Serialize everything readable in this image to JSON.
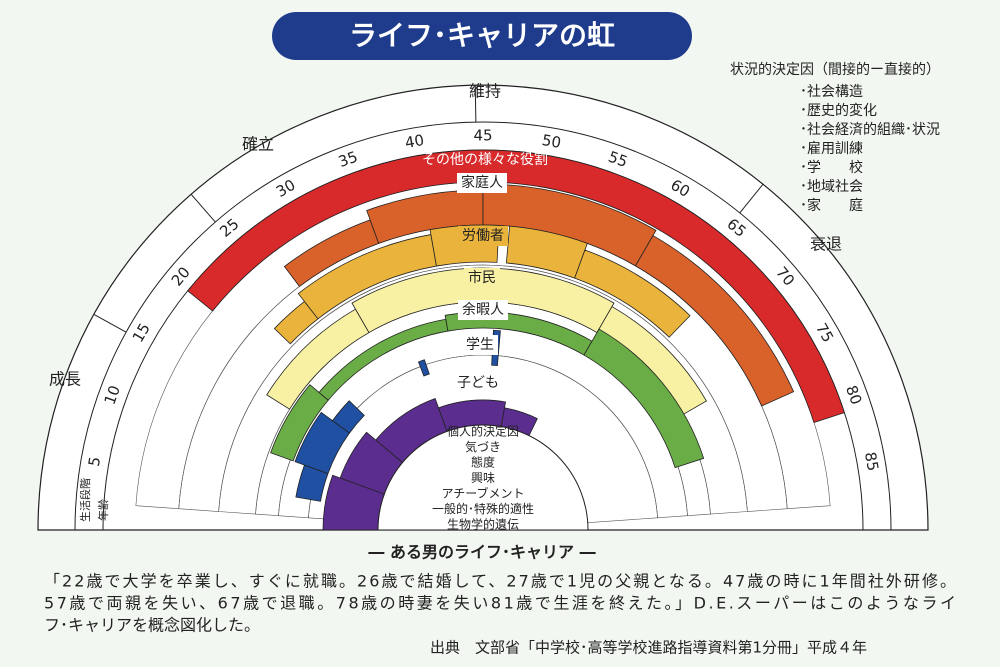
{
  "title": "ライフ･キャリアの虹",
  "stages": {
    "growth": "成長",
    "establishment": "確立",
    "maintenance": "維持",
    "decline": "衰退"
  },
  "axis_labels": {
    "stage": "生活段階",
    "age": "年齢"
  },
  "ages": [
    5,
    10,
    15,
    20,
    25,
    30,
    35,
    40,
    45,
    50,
    55,
    60,
    65,
    70,
    75,
    80,
    85
  ],
  "roles": {
    "other": "その他の様々な役割",
    "homemaker": "家庭人",
    "worker": "労働者",
    "citizen": "市民",
    "leisurite": "余暇人",
    "student": "学生",
    "child": "子ども"
  },
  "personal_determinants": [
    "個人的決定因",
    "気づき",
    "態度",
    "興味",
    "アチーブメント",
    "一般的･特殊的適性",
    "生物学的遺伝"
  ],
  "situational_determinants": {
    "title": "状況的決定因（間接的ー直接的）",
    "items": [
      "･社会構造",
      "･歴史的変化",
      "･社会経済的組織･状況",
      "･雇用訓練",
      "･学　　校",
      "･地域社会",
      "･家　　庭"
    ]
  },
  "caption": "― ある男のライフ･キャリア ―",
  "description": [
    "「22歳で大学を卒業し、すぐに就職。26歳で結婚して、27歳で1児の父親となる。47歳の時に1年間社外研修。",
    "57歳で両親を失い、67歳で退職。78歳の時妻を失い81歳で生涯を終えた。」D.E.スーパーはこのようなライ",
    "フ･キャリアを概念図化した。"
  ],
  "source": "出典　文部省「中学校･高等学校進路指導資料第1分冊」平成４年"
}
